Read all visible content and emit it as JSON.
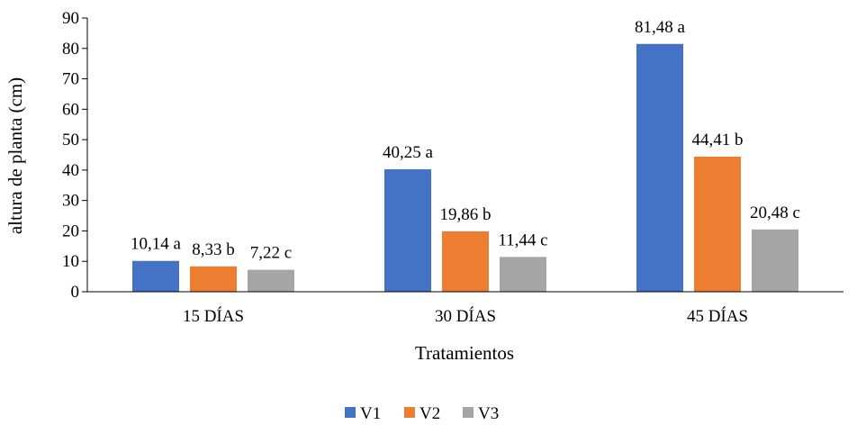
{
  "chart_data": {
    "type": "bar",
    "categories": [
      "15 DÍAS",
      "30 DÍAS",
      "45 DÍAS"
    ],
    "series": [
      {
        "name": "V1",
        "color": "#4472C4",
        "values": [
          10.14,
          40.25,
          81.48
        ],
        "labels": [
          "10,14 a",
          "40,25 a",
          "81,48 a"
        ]
      },
      {
        "name": "V2",
        "color": "#ED7D31",
        "values": [
          8.33,
          19.86,
          44.41
        ],
        "labels": [
          "8,33 b",
          "19,86 b",
          "44,41 b"
        ]
      },
      {
        "name": "V3",
        "color": "#A5A5A5",
        "values": [
          7.22,
          11.44,
          20.48
        ],
        "labels": [
          "7,22 c",
          "11,44 c",
          "20,48 c"
        ]
      }
    ],
    "title": "",
    "xlabel": "Tratamientos",
    "ylabel": "altura de planta (cm)",
    "ylim": [
      0,
      90
    ],
    "yticks": [
      0,
      10,
      20,
      30,
      40,
      50,
      60,
      70,
      80,
      90
    ],
    "grid": false,
    "legend": "bottom"
  }
}
